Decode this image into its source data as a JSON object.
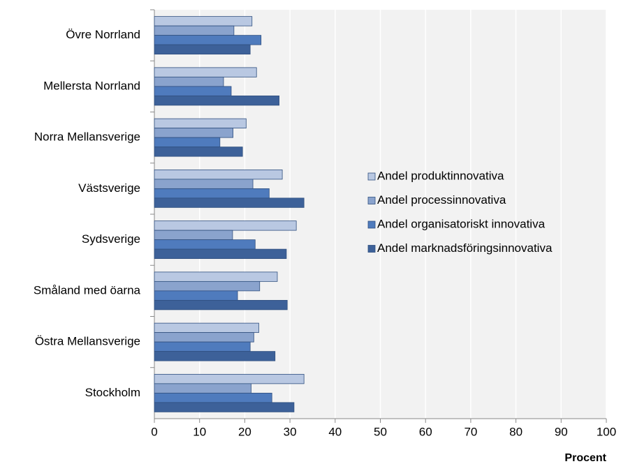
{
  "chart_data": {
    "type": "bar",
    "orientation": "horizontal",
    "categories": [
      "Övre Norrland",
      "Mellersta Norrland",
      "Norra Mellansverige",
      "Västsverige",
      "Sydsverige",
      "Småland med öarna",
      "Östra Mellansverige",
      "Stockholm"
    ],
    "series": [
      {
        "name": "Andel produktinnovativa",
        "color": "#b9c8e2",
        "values": [
          21.6,
          22.6,
          20.3,
          28.3,
          31.4,
          27.2,
          23.1,
          33.1
        ]
      },
      {
        "name": "Andel processinnovativa",
        "color": "#8aa3cd",
        "values": [
          17.6,
          15.3,
          17.4,
          21.8,
          17.3,
          23.3,
          22.0,
          21.4
        ]
      },
      {
        "name": "Andel organisatoriskt innovativa",
        "color": "#4f7bbd",
        "values": [
          23.6,
          17.0,
          14.5,
          25.4,
          22.3,
          18.4,
          21.2,
          26.0
        ]
      },
      {
        "name": "Andel marknadsföringsinnovativa",
        "color": "#3d6199",
        "values": [
          21.2,
          27.6,
          19.5,
          33.1,
          29.2,
          29.4,
          26.7,
          30.9
        ]
      }
    ],
    "xlabel": "Procent",
    "xlim": [
      0,
      100
    ],
    "xticks": [
      0,
      10,
      20,
      30,
      40,
      50,
      60,
      70,
      80,
      90,
      100
    ],
    "grid": true,
    "legend": "right"
  }
}
